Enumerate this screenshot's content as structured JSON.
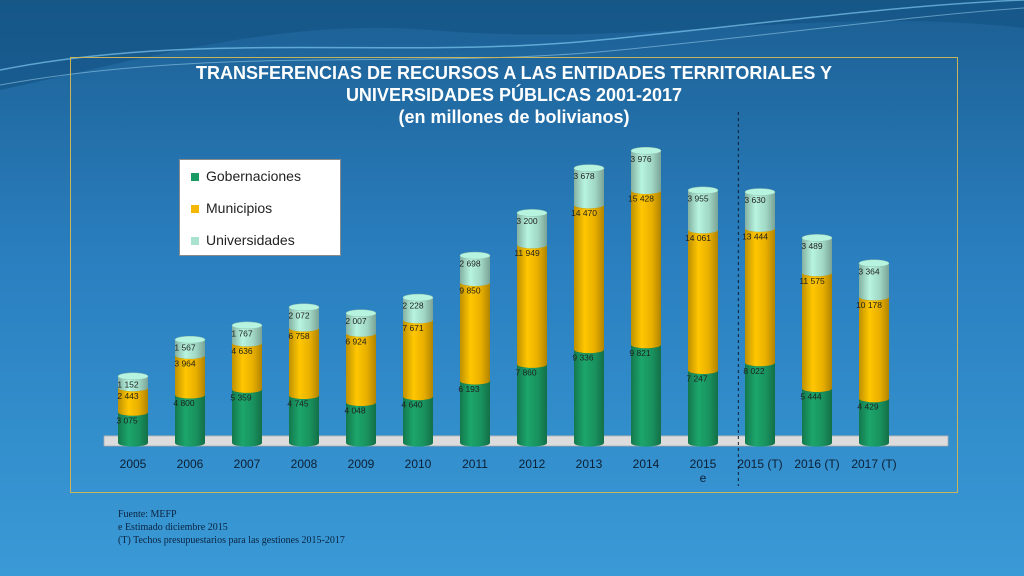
{
  "slide": {
    "title_lines": [
      "TRANSFERENCIAS DE RECURSOS A LAS ENTIDADES TERRITORIALES Y",
      "UNIVERSIDADES PÚBLICAS 2001-2017",
      "(en millones de bolivianos)"
    ],
    "sources": [
      "Fuente: MEFP",
      "e Estimado diciembre 2015",
      "(T) Techos presupuestarios para las gestiones 2015-2017"
    ]
  },
  "chart_data": {
    "type": "bar",
    "stacked": true,
    "title": "TRANSFERENCIAS DE RECURSOS A LAS ENTIDADES TERRITORIALES Y UNIVERSIDADES PÚBLICAS 2001-2017 (en millones de bolivianos)",
    "categories": [
      "2005",
      "2006",
      "2007",
      "2008",
      "2009",
      "2010",
      "2011",
      "2012",
      "2013",
      "2014",
      "2015\ne",
      "2015 (T)",
      "2016 (T)",
      "2017 (T)"
    ],
    "series": [
      {
        "name": "Gobernaciones",
        "color": "#1a9a63",
        "values": [
          3075,
          4800,
          5359,
          4745,
          4048,
          4640,
          6193,
          7860,
          9336,
          9821,
          7247,
          8022,
          5444,
          4429
        ],
        "labels": [
          "3 075",
          "4 800",
          "5 359",
          "4 745",
          "4 048",
          "4 640",
          "6 193",
          "7 860",
          "9 336",
          "9 821",
          "7 247",
          "8 022",
          "5 444",
          "4 429"
        ]
      },
      {
        "name": "Municipios",
        "color": "#f4b800",
        "values": [
          2443,
          3964,
          4636,
          6758,
          6924,
          7671,
          9850,
          11949,
          14470,
          15428,
          14061,
          13444,
          11575,
          10178
        ],
        "labels": [
          "2 443",
          "3 964",
          "4 636",
          "6 758",
          "6 924",
          "7 671",
          "9 850",
          "11 949",
          "14 470",
          "15 428",
          "14 061",
          "13 444",
          "11 575",
          "10 178"
        ]
      },
      {
        "name": "Universidades",
        "color": "#a9e2cf",
        "values": [
          1152,
          1567,
          1767,
          2072,
          2007,
          2228,
          2698,
          3200,
          3678,
          3976,
          3955,
          3630,
          3489,
          3364
        ],
        "labels": [
          "1 152",
          "1 567",
          "1 767",
          "2 072",
          "2 007",
          "2 228",
          "2 698",
          "3 200",
          "3 678",
          "3 976",
          "3 955",
          "3 630",
          "3 489",
          "3 364"
        ]
      }
    ],
    "ylim": [
      0,
      30000
    ],
    "grid": false,
    "legend_position": "top-left",
    "separator_after_category": "2015\ne"
  }
}
